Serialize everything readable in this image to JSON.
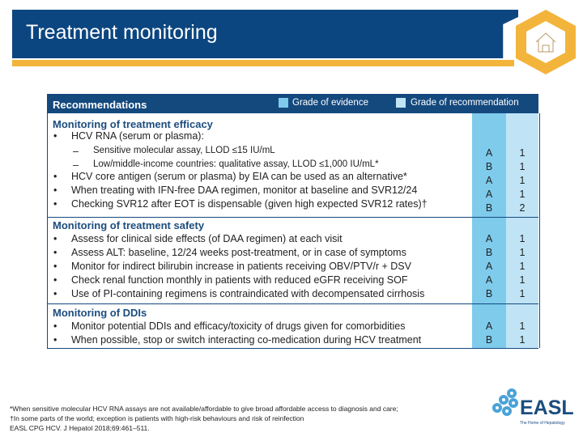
{
  "title": "Treatment monitoring",
  "header": {
    "recommendations": "Recommendations",
    "grade_evidence": "Grade of evidence",
    "grade_recommendation": "Grade of recommendation"
  },
  "colors": {
    "title_bar": "#0c4680",
    "accent": "#f3b43b",
    "evidence_col": "#7ecbec",
    "recommendation_col": "#c0e4f6"
  },
  "sections": [
    {
      "heading": "Monitoring of treatment efficacy",
      "items": [
        {
          "bullet": "•",
          "text": "HCV RNA (serum or plasma):"
        },
        {
          "bullet": "–",
          "text": "Sensitive molecular assay, LLOD ≤15 IU/mL",
          "evidence": "A",
          "rec": "1"
        },
        {
          "bullet": "–",
          "text": "Low/middle-income countries: qualitative assay, LLOD ≤1,000 IU/mL*",
          "evidence": "B",
          "rec": "1"
        },
        {
          "bullet": "•",
          "text": "HCV core antigen (serum or plasma) by EIA can be used as an alternative*",
          "evidence": "A",
          "rec": "1"
        },
        {
          "bullet": "•",
          "text": "When treating with IFN-free DAA regimen, monitor at baseline and SVR12/24",
          "evidence": "A",
          "rec": "1"
        },
        {
          "bullet": "•",
          "text": "Checking SVR12 after EOT is dispensable (given high expected SVR12 rates)†",
          "evidence": "B",
          "rec": "2"
        }
      ]
    },
    {
      "heading": "Monitoring of treatment safety",
      "items": [
        {
          "bullet": "•",
          "text": "Assess for clinical side effects (of DAA regimen) at each visit",
          "evidence": "A",
          "rec": "1"
        },
        {
          "bullet": "•",
          "text": "Assess ALT: baseline, 12/24 weeks post-treatment, or in case of symptoms",
          "evidence": "B",
          "rec": "1"
        },
        {
          "bullet": "•",
          "text": "Monitor for indirect bilirubin increase in patients receiving OBV/PTV/r + DSV",
          "evidence": "A",
          "rec": "1"
        },
        {
          "bullet": "•",
          "text": "Check renal function monthly in patients with reduced eGFR receiving SOF",
          "evidence": "A",
          "rec": "1"
        },
        {
          "bullet": "•",
          "text": "Use of PI-containing regimens is contraindicated with decompensated cirrhosis",
          "evidence": "B",
          "rec": "1"
        }
      ]
    },
    {
      "heading": "Monitoring of DDIs",
      "items": [
        {
          "bullet": "•",
          "text": "Monitor potential DDIs and efficacy/toxicity of drugs given for comorbidities",
          "evidence": "A",
          "rec": "1"
        },
        {
          "bullet": "•",
          "text": "When possible, stop or switch interacting co-medication during HCV treatment",
          "evidence": "B",
          "rec": "1"
        }
      ]
    }
  ],
  "footnotes": [
    "*When sensitive molecular HCV RNA assays are not available/affordable to give broad affordable access to diagnosis and care;",
    "†In some parts of the world; exception is patients with high-risk behaviours and risk of reinfection",
    "EASL CPG HCV. J Hepatol 2018;69:461–511."
  ],
  "logo": {
    "text": "EASL",
    "tagline": "The Home of Hepatology"
  }
}
